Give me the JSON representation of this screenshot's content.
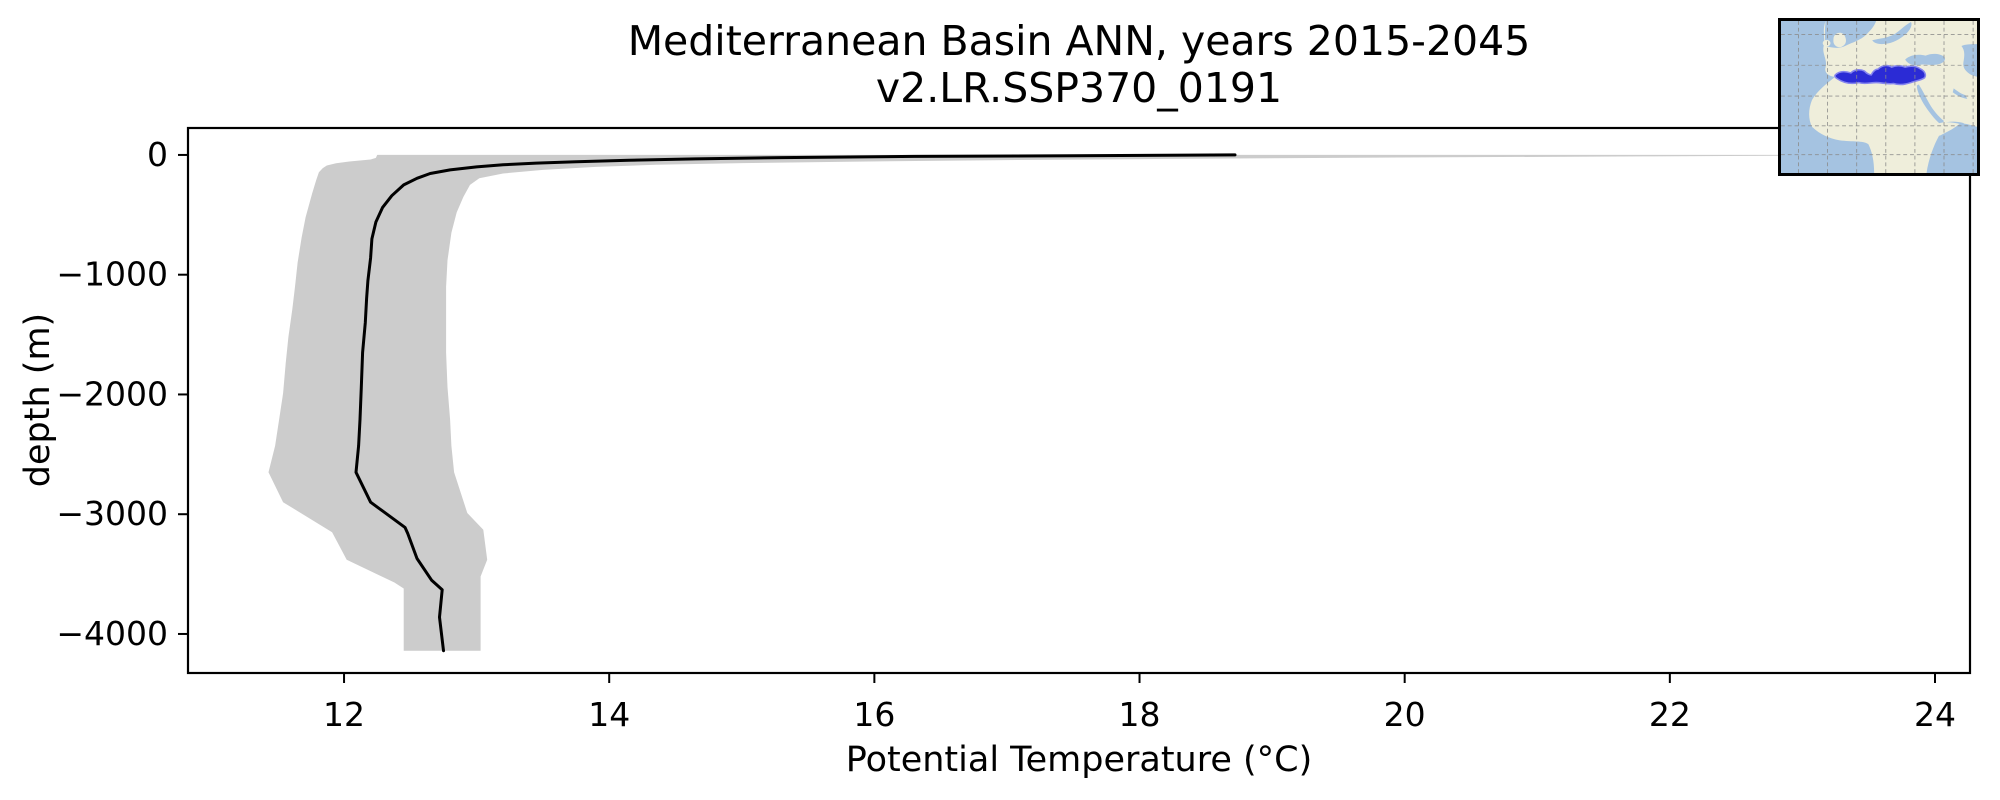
{
  "title": {
    "line1": "Mediterranean Basin ANN, years 2015-2045",
    "line2": "v2.LR.SSP370_0191"
  },
  "chart_data": {
    "type": "line",
    "title": "Mediterranean Basin ANN, years 2015-2045",
    "subtitle": "v2.LR.SSP370_0191",
    "xlabel": "Potential Temperature (°C)",
    "ylabel": "depth (m)",
    "xlim": [
      10.823,
      24.264
    ],
    "ylim": [
      -4326,
      225
    ],
    "xticks": [
      12,
      14,
      16,
      18,
      20,
      22,
      24
    ],
    "xtick_labels": [
      "12",
      "14",
      "16",
      "18",
      "20",
      "22",
      "24"
    ],
    "yticks": [
      0,
      -1000,
      -2000,
      -3000,
      -4000
    ],
    "ytick_labels": [
      "0",
      "−1000",
      "−2000",
      "−3000",
      "−4000"
    ],
    "grid": false,
    "legend": "none",
    "colors": {
      "mean_line": "#000000",
      "std_band": "#cccccc",
      "spine": "#000000"
    },
    "series": [
      {
        "name": "mean_profile",
        "style": "line",
        "color": "#000000",
        "points_temp_depth": [
          [
            18.72,
            0
          ],
          [
            17.5,
            -6
          ],
          [
            16.3,
            -12
          ],
          [
            15.3,
            -22
          ],
          [
            14.65,
            -33
          ],
          [
            14.15,
            -44
          ],
          [
            13.75,
            -56
          ],
          [
            13.45,
            -68
          ],
          [
            13.2,
            -82
          ],
          [
            13.0,
            -100
          ],
          [
            12.8,
            -125
          ],
          [
            12.65,
            -155
          ],
          [
            12.55,
            -195
          ],
          [
            12.45,
            -250
          ],
          [
            12.36,
            -340
          ],
          [
            12.29,
            -440
          ],
          [
            12.24,
            -560
          ],
          [
            12.21,
            -700
          ],
          [
            12.2,
            -860
          ],
          [
            12.18,
            -1050
          ],
          [
            12.17,
            -1200
          ],
          [
            12.16,
            -1400
          ],
          [
            12.14,
            -1650
          ],
          [
            12.13,
            -1940
          ],
          [
            12.12,
            -2210
          ],
          [
            12.11,
            -2430
          ],
          [
            12.09,
            -2650
          ],
          [
            12.2,
            -2900
          ],
          [
            12.46,
            -3110
          ],
          [
            12.48,
            -3160
          ],
          [
            12.55,
            -3370
          ],
          [
            12.66,
            -3550
          ],
          [
            12.74,
            -3630
          ],
          [
            12.72,
            -3860
          ],
          [
            12.75,
            -4140
          ]
        ]
      },
      {
        "name": "std_band",
        "style": "band",
        "color": "#cccccc",
        "lower_temp_depth": [
          [
            12.25,
            0
          ],
          [
            12.24,
            -25
          ],
          [
            12.2,
            -38
          ],
          [
            12.04,
            -55
          ],
          [
            11.94,
            -70
          ],
          [
            11.87,
            -88
          ],
          [
            11.84,
            -110
          ],
          [
            11.81,
            -145
          ],
          [
            11.79,
            -210
          ],
          [
            11.76,
            -320
          ],
          [
            11.71,
            -520
          ],
          [
            11.68,
            -690
          ],
          [
            11.65,
            -900
          ],
          [
            11.63,
            -1100
          ],
          [
            11.61,
            -1290
          ],
          [
            11.58,
            -1520
          ],
          [
            11.56,
            -1740
          ],
          [
            11.54,
            -1990
          ],
          [
            11.51,
            -2210
          ],
          [
            11.48,
            -2430
          ],
          [
            11.43,
            -2650
          ],
          [
            11.54,
            -2900
          ],
          [
            11.91,
            -3150
          ],
          [
            12.02,
            -3380
          ],
          [
            12.38,
            -3570
          ],
          [
            12.45,
            -3620
          ],
          [
            12.45,
            -4140
          ]
        ],
        "upper_temp_depth": [
          [
            24.3,
            0
          ],
          [
            21.8,
            -12
          ],
          [
            19.8,
            -22
          ],
          [
            18.2,
            -33
          ],
          [
            16.9,
            -44
          ],
          [
            15.8,
            -56
          ],
          [
            15.0,
            -68
          ],
          [
            14.35,
            -82
          ],
          [
            13.9,
            -100
          ],
          [
            13.5,
            -125
          ],
          [
            13.2,
            -155
          ],
          [
            13.02,
            -195
          ],
          [
            12.95,
            -250
          ],
          [
            12.9,
            -350
          ],
          [
            12.85,
            -480
          ],
          [
            12.81,
            -650
          ],
          [
            12.78,
            -880
          ],
          [
            12.77,
            -1100
          ],
          [
            12.77,
            -1400
          ],
          [
            12.77,
            -1650
          ],
          [
            12.78,
            -1940
          ],
          [
            12.8,
            -2210
          ],
          [
            12.81,
            -2430
          ],
          [
            12.83,
            -2650
          ],
          [
            12.93,
            -2990
          ],
          [
            13.05,
            -3130
          ],
          [
            13.08,
            -3380
          ],
          [
            13.03,
            -3520
          ],
          [
            13.03,
            -4140
          ]
        ]
      }
    ],
    "inset_map": {
      "region": "Mediterranean Basin",
      "position": "top-right",
      "ocean_color": "#a5c3e1",
      "land_color": "#efeedb",
      "highlight_color": "#2b2bd5",
      "highlight_edge_color": "#8585ef",
      "gridline_color": "#8a8a8a"
    }
  }
}
